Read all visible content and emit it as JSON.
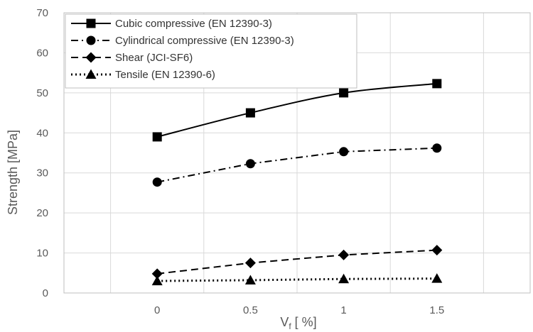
{
  "chart_data": {
    "type": "line",
    "x": [
      0,
      0.5,
      1,
      1.5
    ],
    "x_tick_labels": [
      "0",
      "0.5",
      "1",
      "1.5"
    ],
    "xlim": [
      -0.5,
      2.0
    ],
    "ylim": [
      0,
      70
    ],
    "y_ticks": [
      0,
      10,
      20,
      30,
      40,
      50,
      60,
      70
    ],
    "y_tick_labels": [
      "0",
      "10",
      "20",
      "30",
      "40",
      "50",
      "60",
      "70"
    ],
    "ylabel": "Strength  [MPa]",
    "xlabel_main": "V",
    "xlabel_sub": "f",
    "xlabel_rest": " [ %]",
    "grid": "vertical and horizontal major gridlines",
    "legend_position": "top-left",
    "series": [
      {
        "name": "Cubic compressive (EN 12390-3)",
        "values": [
          39,
          45,
          50,
          52.3
        ],
        "marker": "square",
        "line": "solid",
        "color": "#000000"
      },
      {
        "name": "Cylindrical compressive (EN 12390-3)",
        "values": [
          27.7,
          32.3,
          35.3,
          36.2
        ],
        "marker": "circle",
        "line": "dash-dot",
        "color": "#000000"
      },
      {
        "name": "Shear (JCI-SF6)",
        "values": [
          4.8,
          7.5,
          9.5,
          10.7
        ],
        "marker": "diamond",
        "line": "dashed",
        "color": "#000000"
      },
      {
        "name": "Tensile (EN 12390-6)",
        "values": [
          3.0,
          3.2,
          3.5,
          3.6
        ],
        "marker": "triangle",
        "line": "dotted",
        "color": "#000000"
      }
    ]
  }
}
